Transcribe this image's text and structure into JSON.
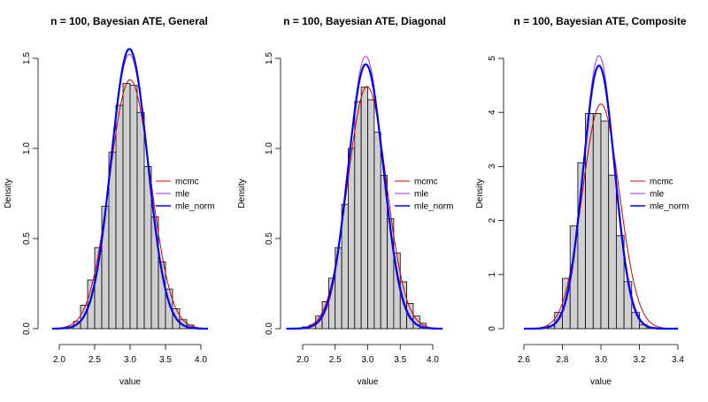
{
  "chart_data": [
    {
      "type": "histogram",
      "title": "n = 100, Bayesian ATE, General",
      "xlabel": "value",
      "ylabel": "Density",
      "xlim": [
        1.9,
        4.1
      ],
      "ylim": [
        0,
        1.55
      ],
      "x_ticks": [
        2.0,
        2.5,
        3.0,
        3.5,
        4.0
      ],
      "x_tick_labels": [
        "2.0",
        "2.5",
        "3.0",
        "3.5",
        "4.0"
      ],
      "y_ticks": [
        0.0,
        0.5,
        1.0,
        1.5
      ],
      "y_tick_labels": [
        "0.0",
        "0.5",
        "1.0",
        "1.5"
      ],
      "bin_width": 0.1,
      "bins": [
        {
          "x0": 2.1,
          "h": 0.01
        },
        {
          "x0": 2.2,
          "h": 0.04
        },
        {
          "x0": 2.3,
          "h": 0.13
        },
        {
          "x0": 2.4,
          "h": 0.27
        },
        {
          "x0": 2.5,
          "h": 0.45
        },
        {
          "x0": 2.6,
          "h": 0.68
        },
        {
          "x0": 2.7,
          "h": 0.98
        },
        {
          "x0": 2.8,
          "h": 1.24
        },
        {
          "x0": 2.9,
          "h": 1.36
        },
        {
          "x0": 3.0,
          "h": 1.35
        },
        {
          "x0": 3.1,
          "h": 1.2
        },
        {
          "x0": 3.2,
          "h": 0.9
        },
        {
          "x0": 3.3,
          "h": 0.62
        },
        {
          "x0": 3.4,
          "h": 0.37
        },
        {
          "x0": 3.5,
          "h": 0.22
        },
        {
          "x0": 3.6,
          "h": 0.11
        },
        {
          "x0": 3.7,
          "h": 0.05
        },
        {
          "x0": 3.8,
          "h": 0.02
        }
      ],
      "curves": [
        {
          "name": "mcmc",
          "color": "#cc0000",
          "mean": 3.0,
          "sd": 0.289,
          "lw": 1
        },
        {
          "name": "mle",
          "color": "#9b30ff",
          "mean": 2.99,
          "sd": 0.262,
          "lw": 1
        },
        {
          "name": "mle_norm",
          "color": "#0000ff",
          "mean": 2.99,
          "sd": 0.257,
          "lw": 2.2
        }
      ],
      "legend": {
        "placement": "right"
      }
    },
    {
      "type": "histogram",
      "title": "n = 100, Bayesian ATE, Diagonal",
      "xlabel": "value",
      "ylabel": "Density",
      "xlim": [
        1.75,
        4.15
      ],
      "ylim": [
        0,
        1.55
      ],
      "x_ticks": [
        2.0,
        2.5,
        3.0,
        3.5,
        4.0
      ],
      "x_tick_labels": [
        "2.0",
        "2.5",
        "3.0",
        "3.5",
        "4.0"
      ],
      "y_ticks": [
        0.0,
        0.5,
        1.0,
        1.5
      ],
      "y_tick_labels": [
        "0.0",
        "0.5",
        "1.0",
        "1.5"
      ],
      "bin_width": 0.1,
      "bins": [
        {
          "x0": 2.0,
          "h": 0.01
        },
        {
          "x0": 2.1,
          "h": 0.02
        },
        {
          "x0": 2.2,
          "h": 0.07
        },
        {
          "x0": 2.3,
          "h": 0.15
        },
        {
          "x0": 2.4,
          "h": 0.28
        },
        {
          "x0": 2.5,
          "h": 0.45
        },
        {
          "x0": 2.6,
          "h": 0.69
        },
        {
          "x0": 2.7,
          "h": 1.0
        },
        {
          "x0": 2.8,
          "h": 1.26
        },
        {
          "x0": 2.9,
          "h": 1.34
        },
        {
          "x0": 3.0,
          "h": 1.27
        },
        {
          "x0": 3.1,
          "h": 1.09
        },
        {
          "x0": 3.2,
          "h": 0.85
        },
        {
          "x0": 3.3,
          "h": 0.61
        },
        {
          "x0": 3.4,
          "h": 0.42
        },
        {
          "x0": 3.5,
          "h": 0.26
        },
        {
          "x0": 3.6,
          "h": 0.14
        },
        {
          "x0": 3.7,
          "h": 0.07
        },
        {
          "x0": 3.8,
          "h": 0.03
        }
      ],
      "curves": [
        {
          "name": "mcmc",
          "color": "#cc0000",
          "mean": 2.99,
          "sd": 0.297,
          "lw": 1
        },
        {
          "name": "mle",
          "color": "#9b30ff",
          "mean": 2.97,
          "sd": 0.264,
          "lw": 1
        },
        {
          "name": "mle_norm",
          "color": "#0000ff",
          "mean": 2.97,
          "sd": 0.272,
          "lw": 2.2
        }
      ],
      "legend": {
        "placement": "right"
      }
    },
    {
      "type": "histogram",
      "title": "n = 100, Bayesian ATE, Composite",
      "xlabel": "value",
      "ylabel": "Density",
      "xlim": [
        2.6,
        3.4
      ],
      "ylim": [
        0,
        5.1
      ],
      "x_ticks": [
        2.6,
        2.8,
        3.0,
        3.2,
        3.4
      ],
      "x_tick_labels": [
        "2.6",
        "2.8",
        "3.0",
        "3.2",
        "3.4"
      ],
      "y_ticks": [
        0,
        1,
        2,
        3,
        4,
        5
      ],
      "y_tick_labels": [
        "0",
        "1",
        "2",
        "3",
        "4",
        "5"
      ],
      "bin_width": 0.04,
      "bins": [
        {
          "x0": 2.72,
          "h": 0.05
        },
        {
          "x0": 2.76,
          "h": 0.3
        },
        {
          "x0": 2.8,
          "h": 0.93
        },
        {
          "x0": 2.84,
          "h": 1.9
        },
        {
          "x0": 2.88,
          "h": 3.07
        },
        {
          "x0": 2.92,
          "h": 3.98
        },
        {
          "x0": 2.96,
          "h": 3.98
        },
        {
          "x0": 3.0,
          "h": 3.84
        },
        {
          "x0": 3.04,
          "h": 2.84
        },
        {
          "x0": 3.08,
          "h": 1.72
        },
        {
          "x0": 3.12,
          "h": 0.87
        },
        {
          "x0": 3.16,
          "h": 0.3
        },
        {
          "x0": 3.2,
          "h": 0.07
        },
        {
          "x0": 3.24,
          "h": 0.02
        }
      ],
      "curves": [
        {
          "name": "mcmc",
          "color": "#cc0000",
          "mean": 3.0,
          "sd": 0.096,
          "lw": 1
        },
        {
          "name": "mle",
          "color": "#9b30ff",
          "mean": 2.99,
          "sd": 0.079,
          "lw": 1
        },
        {
          "name": "mle_norm",
          "color": "#0000ff",
          "mean": 2.99,
          "sd": 0.082,
          "lw": 2.2
        }
      ],
      "legend": {
        "placement": "right"
      }
    }
  ]
}
